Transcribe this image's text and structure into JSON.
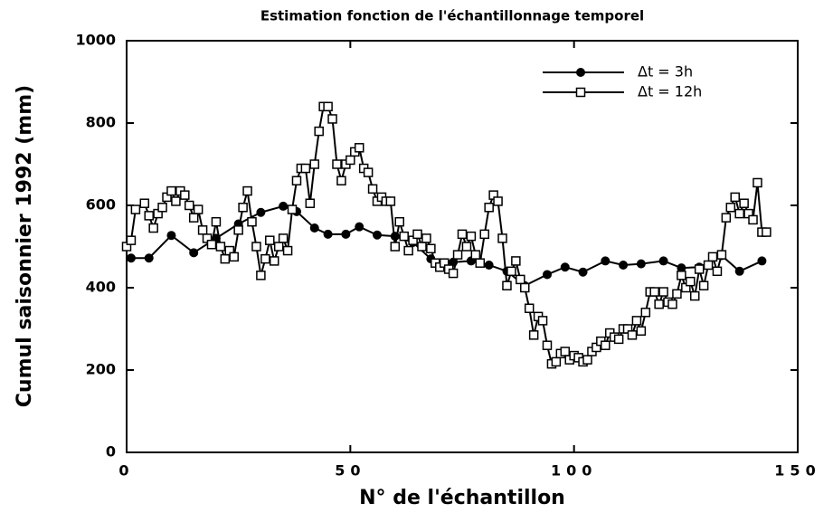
{
  "chart_data": {
    "type": "line",
    "title": "Estimation fonction de l'échantillonnage temporel",
    "x_label": "N°  de  l'échantillon",
    "y_label": "Cumul  saisonnier  1992  (mm)",
    "xlim": [
      0,
      150
    ],
    "xticks": [
      0,
      50,
      100,
      150
    ],
    "ylim": [
      0,
      1000
    ],
    "yticks": [
      0,
      200,
      400,
      600,
      800,
      1000
    ],
    "legend": "upper right",
    "series": [
      {
        "name": "Δt = 3h",
        "color": "#000",
        "marker": "circle",
        "x": [
          1,
          5,
          10,
          15,
          20,
          25,
          30,
          35,
          38,
          42,
          45,
          49,
          52,
          56,
          60,
          64,
          68,
          73,
          77,
          81,
          85,
          89,
          94,
          98,
          102,
          107,
          111,
          115,
          120,
          124,
          128,
          133,
          137,
          142
        ],
        "values": [
          472,
          472,
          527,
          485,
          520,
          555,
          583,
          598,
          585,
          545,
          530,
          530,
          548,
          528,
          525,
          510,
          470,
          462,
          465,
          455,
          440,
          405,
          432,
          450,
          438,
          465,
          455,
          458,
          465,
          448,
          450,
          478,
          440,
          465
        ]
      },
      {
        "name": "Δt = 12h",
        "color": "#000",
        "marker": "square",
        "x": [
          0,
          1,
          2,
          4,
          5,
          6,
          7,
          8,
          9,
          10,
          11,
          12,
          13,
          14,
          15,
          16,
          17,
          18,
          19,
          20,
          21,
          22,
          23,
          24,
          25,
          26,
          27,
          28,
          29,
          30,
          31,
          32,
          33,
          34,
          35,
          36,
          37,
          38,
          39,
          40,
          41,
          42,
          43,
          44,
          45,
          46,
          47,
          48,
          49,
          50,
          51,
          52,
          53,
          54,
          55,
          56,
          57,
          58,
          59,
          60,
          61,
          62,
          63,
          64,
          65,
          66,
          67,
          68,
          69,
          70,
          71,
          72,
          73,
          74,
          75,
          76,
          77,
          78,
          79,
          80,
          81,
          82,
          83,
          84,
          85,
          86,
          87,
          88,
          89,
          90,
          91,
          92,
          93,
          94,
          95,
          96,
          97,
          98,
          99,
          100,
          101,
          102,
          103,
          104,
          105,
          106,
          107,
          108,
          109,
          110,
          111,
          112,
          113,
          114,
          115,
          116,
          117,
          118,
          119,
          120,
          121,
          122,
          123,
          124,
          125,
          126,
          127,
          128,
          129,
          130,
          131,
          132,
          133,
          134,
          135,
          136,
          137,
          138,
          139,
          140,
          141,
          142,
          143
        ],
        "values": [
          500,
          515,
          590,
          605,
          575,
          545,
          580,
          595,
          620,
          635,
          610,
          635,
          625,
          600,
          570,
          590,
          540,
          520,
          505,
          560,
          500,
          470,
          490,
          475,
          540,
          595,
          635,
          560,
          500,
          430,
          470,
          515,
          465,
          500,
          520,
          490,
          590,
          660,
          690,
          690,
          605,
          700,
          780,
          840,
          840,
          810,
          700,
          660,
          700,
          710,
          730,
          740,
          690,
          680,
          640,
          610,
          620,
          610,
          610,
          500,
          560,
          525,
          490,
          515,
          530,
          500,
          520,
          495,
          460,
          450,
          460,
          445,
          435,
          480,
          530,
          500,
          525,
          480,
          460,
          530,
          595,
          625,
          610,
          520,
          405,
          440,
          465,
          420,
          400,
          350,
          285,
          330,
          320,
          260,
          215,
          220,
          240,
          245,
          225,
          235,
          230,
          220,
          225,
          245,
          255,
          270,
          260,
          290,
          280,
          275,
          300,
          300,
          285,
          320,
          295,
          340,
          390,
          390,
          360,
          390,
          365,
          360,
          385,
          430,
          400,
          415,
          380,
          445,
          405,
          455,
          475,
          440,
          480,
          570,
          595,
          620,
          580,
          605,
          580,
          565,
          655,
          535,
          535
        ]
      }
    ]
  }
}
